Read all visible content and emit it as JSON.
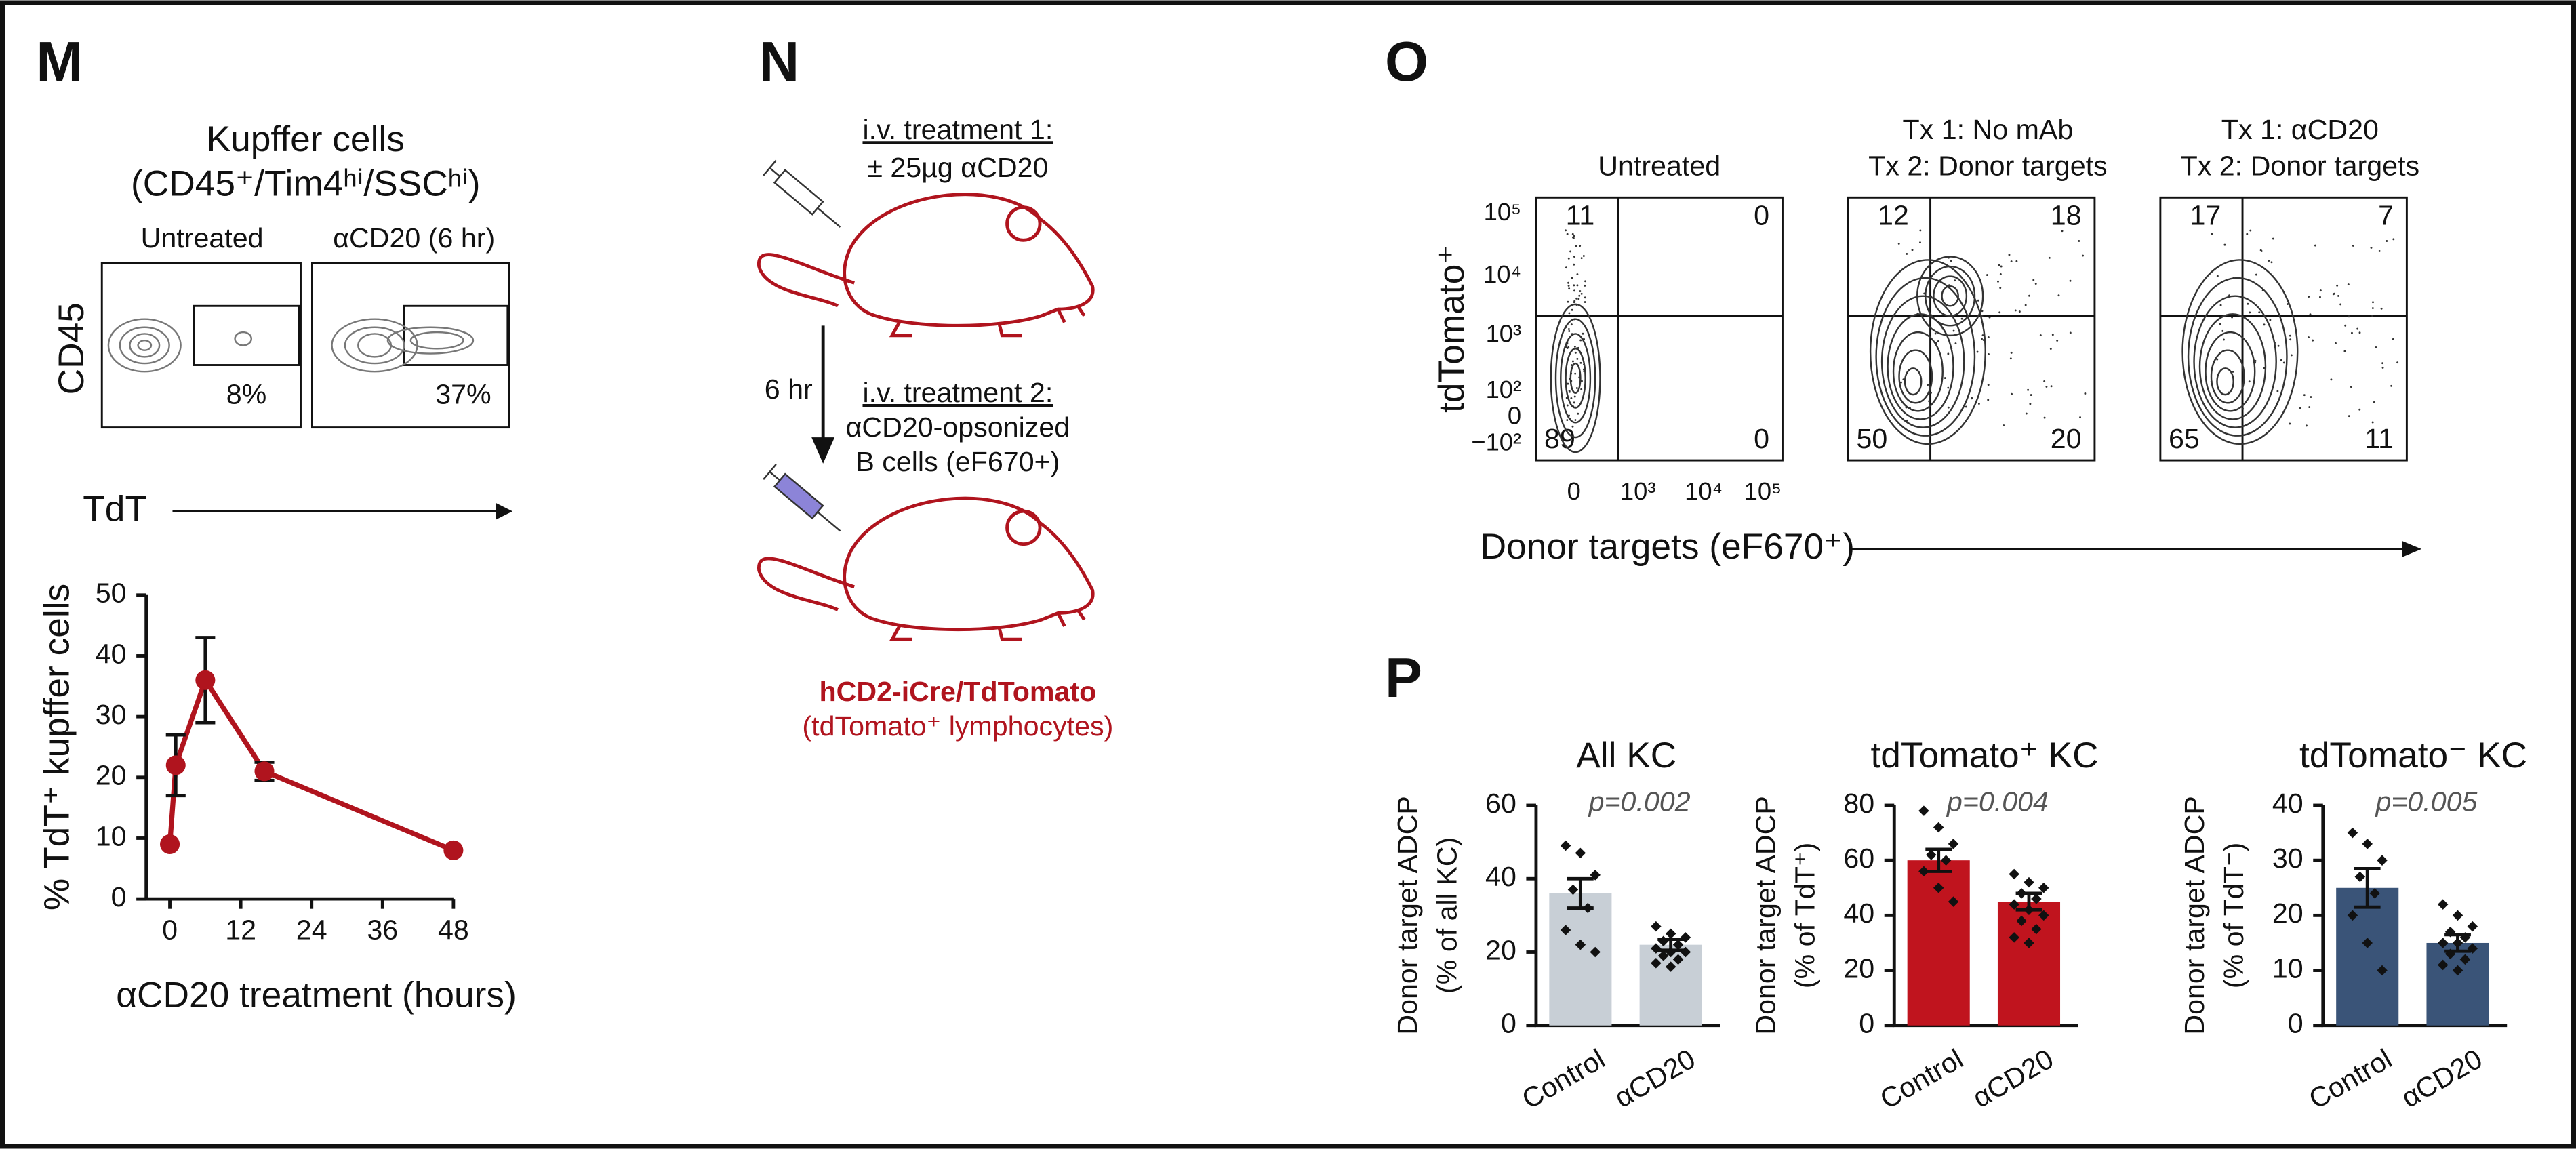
{
  "panel_labels": [
    "M",
    "N",
    "O",
    "P"
  ],
  "panel_m": {
    "title": [
      "Kupffer cells",
      "(CD45⁺/Tim4ʰⁱ/SSCʰⁱ)"
    ],
    "plots": [
      {
        "title": "Untreated",
        "gate": "8%"
      },
      {
        "title": "αCD20 (6 hr)",
        "gate": "37%"
      }
    ],
    "y_label": "CD45",
    "x_label": "TdT"
  },
  "panel_n": {
    "step1": [
      "i.v. treatment 1:",
      "± 25µg αCD20"
    ],
    "interval": "6 hr",
    "step2": [
      "i.v. treatment 2:",
      "αCD20-opsonized",
      "B cells (eF670+)"
    ],
    "strain": "hCD2-iCre/TdTomato",
    "strain_note": "(tdTomato⁺ lymphocytes)"
  },
  "panel_o": {
    "y_label": "tdTomato⁺",
    "y_ticks": [
      "10⁵",
      "10⁴",
      "10³",
      "10²",
      "0",
      "−10²"
    ],
    "x_ticks": [
      "0",
      "10³",
      "10⁴",
      "10⁵"
    ],
    "x_label": "Donor targets (eF670⁺)",
    "plots": [
      {
        "title": [
          "Untreated"
        ],
        "quadrants": [
          "11",
          "0",
          "89",
          "0"
        ]
      },
      {
        "title": [
          "Tx 1: No mAb",
          "Tx 2: Donor targets"
        ],
        "quadrants": [
          "12",
          "18",
          "50",
          "20"
        ]
      },
      {
        "title": [
          "Tx 1: αCD20",
          "Tx 2: Donor targets"
        ],
        "quadrants": [
          "17",
          "7",
          "65",
          "11"
        ]
      }
    ]
  },
  "chart_data": [
    {
      "type": "line",
      "x": [
        0,
        1,
        6,
        16,
        48
      ],
      "values": [
        9,
        22,
        36,
        21,
        8
      ],
      "errors": [
        null,
        5,
        7,
        1.5,
        null
      ],
      "color": "#b0141e",
      "xlim": [
        -4,
        48
      ],
      "xticks": [
        0,
        12,
        24,
        36,
        48
      ],
      "ylim": [
        0,
        50
      ],
      "yticks": [
        0,
        10,
        20,
        30,
        40,
        50
      ],
      "x_label": "αCD20 treatment (hours)",
      "y_label": "% TdT⁺ kupffer cells"
    },
    {
      "type": "bar",
      "title": "All KC",
      "annotation": "p=0.002",
      "y_label": [
        "Donor target ADCP",
        "(% of all KC)"
      ],
      "categories": [
        "Control",
        "αCD20"
      ],
      "values": [
        36,
        22
      ],
      "errors": [
        4,
        1.5
      ],
      "color": "#c8cfd6",
      "points": [
        [
          49,
          47,
          41,
          37,
          32,
          26,
          22,
          20
        ],
        [
          27,
          25,
          24,
          23,
          22,
          21,
          20,
          20,
          19,
          18,
          17,
          16
        ]
      ],
      "ylim": [
        0,
        60
      ],
      "yticks": [
        0,
        20,
        40,
        60
      ]
    },
    {
      "type": "bar",
      "title": "tdTomato⁺ KC",
      "annotation": "p=0.004",
      "y_label": [
        "Donor target ADCP",
        "(% of TdT⁺)"
      ],
      "categories": [
        "Control",
        "αCD20"
      ],
      "values": [
        60,
        45
      ],
      "errors": [
        4,
        3
      ],
      "color": "#c0141e",
      "points": [
        [
          78,
          72,
          66,
          62,
          60,
          56,
          50,
          45
        ],
        [
          55,
          52,
          50,
          48,
          46,
          44,
          42,
          40,
          38,
          35,
          32,
          30
        ]
      ],
      "ylim": [
        0,
        80
      ],
      "yticks": [
        0,
        20,
        40,
        60,
        80
      ]
    },
    {
      "type": "bar",
      "title": "tdTomato⁻ KC",
      "annotation": "p=0.005",
      "y_label": [
        "Donor target ADCP",
        "(% of TdT⁻)"
      ],
      "categories": [
        "Control",
        "αCD20"
      ],
      "values": [
        25,
        15
      ],
      "errors": [
        3.5,
        1.5
      ],
      "color": "#3a5478",
      "points": [
        [
          35,
          33,
          30,
          27,
          24,
          20,
          15,
          10
        ],
        [
          22,
          20,
          18,
          17,
          16,
          15,
          15,
          14,
          13,
          12,
          11,
          10
        ]
      ],
      "ylim": [
        0,
        40
      ],
      "yticks": [
        0,
        10,
        20,
        30,
        40
      ]
    }
  ]
}
